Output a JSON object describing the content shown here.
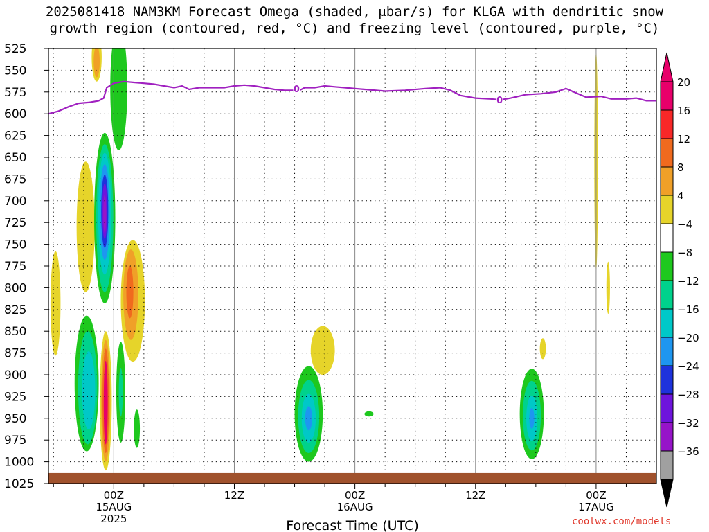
{
  "title": {
    "line1": "2025081418 NAM3KM Forecast Omega (shaded, μbar/s) for KLGA with dendritic snow",
    "line2": "growth region (contoured, red, °C) and freezing level (contoured, purple, °C)"
  },
  "credit": "coolwx.com/models",
  "chart_data": {
    "type": "heatmap",
    "xlabel": "Forecast Time (UTC)",
    "ylabel": "",
    "y_axis": {
      "scale": "pressure (hPa), inverted",
      "range": [
        1025,
        525
      ]
    },
    "y_ticks": [
      525,
      550,
      575,
      600,
      625,
      650,
      675,
      700,
      725,
      750,
      775,
      800,
      825,
      850,
      875,
      900,
      925,
      950,
      975,
      1000,
      1025
    ],
    "x_axis": {
      "range_hours_from_start": [
        -6.5,
        54
      ]
    },
    "x_ticks": [
      {
        "hour": 0,
        "label": "00Z",
        "sub1": "15AUG",
        "sub2": "2025"
      },
      {
        "hour": 12,
        "label": "12Z",
        "sub1": "",
        "sub2": ""
      },
      {
        "hour": 24,
        "label": "00Z",
        "sub1": "16AUG",
        "sub2": ""
      },
      {
        "hour": 36,
        "label": "12Z",
        "sub1": "",
        "sub2": ""
      },
      {
        "hour": 48,
        "label": "00Z",
        "sub1": "17AUG",
        "sub2": ""
      }
    ],
    "grid": true,
    "colorbar": {
      "labels": [
        "20",
        "16",
        "12",
        "8",
        "4",
        "−4",
        "−8",
        "−12",
        "−16",
        "−20",
        "−24",
        "−28",
        "−32",
        "−36"
      ],
      "colors": [
        "#e8006a",
        "#f82828",
        "#f06a1e",
        "#f0a028",
        "#e6d42a",
        "#ffffff",
        "#1ec81e",
        "#00d28c",
        "#00c8c8",
        "#1e96f0",
        "#1e32dc",
        "#6e14dc",
        "#9614c8",
        "#a0a0a0"
      ]
    },
    "freezing_level": {
      "label": "0",
      "color": "#a020c0",
      "points": [
        [
          -6.5,
          600
        ],
        [
          -5.5,
          597
        ],
        [
          -4.5,
          592
        ],
        [
          -3.5,
          588
        ],
        [
          -2.5,
          587
        ],
        [
          -1.5,
          585
        ],
        [
          -1,
          582
        ],
        [
          -0.7,
          570
        ],
        [
          0,
          565
        ],
        [
          1,
          563
        ],
        [
          2,
          564
        ],
        [
          3,
          565
        ],
        [
          4,
          566
        ],
        [
          5,
          568
        ],
        [
          6,
          570
        ],
        [
          6.8,
          568
        ],
        [
          7.5,
          572
        ],
        [
          8.5,
          570
        ],
        [
          9.5,
          570
        ],
        [
          11,
          570
        ],
        [
          12,
          568
        ],
        [
          13,
          567
        ],
        [
          14,
          568
        ],
        [
          15,
          570
        ],
        [
          16,
          572
        ],
        [
          17,
          573
        ],
        [
          18.5,
          573
        ],
        [
          19,
          570
        ],
        [
          20,
          570
        ],
        [
          21,
          568
        ],
        [
          22,
          569
        ],
        [
          23,
          570
        ],
        [
          24,
          571
        ],
        [
          25,
          572
        ],
        [
          27,
          574
        ],
        [
          29,
          573
        ],
        [
          31,
          571
        ],
        [
          32.5,
          570
        ],
        [
          33.5,
          573
        ],
        [
          34.5,
          579
        ],
        [
          36,
          582
        ],
        [
          37.5,
          583
        ],
        [
          38.5,
          584
        ],
        [
          39.5,
          582
        ],
        [
          41,
          578
        ],
        [
          42.5,
          577
        ],
        [
          44,
          575
        ],
        [
          45,
          571
        ],
        [
          46,
          576
        ],
        [
          47,
          581
        ],
        [
          48.5,
          580
        ],
        [
          49.5,
          583
        ],
        [
          51,
          583
        ],
        [
          52,
          582
        ],
        [
          53,
          585
        ],
        [
          54,
          585
        ]
      ]
    },
    "surface": {
      "color": "#a0522d",
      "pressure_top": 1013
    },
    "shaded_regions": [
      {
        "color": "#e6d42a",
        "cx": -1.7,
        "cy": 535,
        "rx": 0.5,
        "ry": 28
      },
      {
        "color": "#f0a028",
        "cx": -1.7,
        "cy": 540,
        "rx": 0.3,
        "ry": 18
      },
      {
        "color": "#1ec81e",
        "cx": 0.5,
        "cy": 570,
        "rx": 0.85,
        "ry": 72
      },
      {
        "color": "#e6d42a",
        "cx": -2.8,
        "cy": 730,
        "rx": 0.9,
        "ry": 75
      },
      {
        "color": "#e6d42a",
        "cx": -5.8,
        "cy": 818,
        "rx": 0.5,
        "ry": 60
      },
      {
        "color": "#1ec81e",
        "cx": -0.9,
        "cy": 720,
        "rx": 1.05,
        "ry": 98
      },
      {
        "color": "#00d28c",
        "cx": -0.9,
        "cy": 720,
        "rx": 0.85,
        "ry": 85
      },
      {
        "color": "#00c8c8",
        "cx": -0.9,
        "cy": 715,
        "rx": 0.65,
        "ry": 70
      },
      {
        "color": "#1e96f0",
        "cx": -0.9,
        "cy": 713,
        "rx": 0.5,
        "ry": 55
      },
      {
        "color": "#1e32dc",
        "cx": -0.9,
        "cy": 712,
        "rx": 0.35,
        "ry": 42
      },
      {
        "color": "#6e14dc",
        "cx": -0.9,
        "cy": 712,
        "rx": 0.25,
        "ry": 32
      },
      {
        "color": "#9614c8",
        "cx": -0.9,
        "cy": 715,
        "rx": 0.15,
        "ry": 22
      },
      {
        "color": "#e6d42a",
        "cx": 1.9,
        "cy": 815,
        "rx": 1.2,
        "ry": 70
      },
      {
        "color": "#f0a028",
        "cx": 1.7,
        "cy": 808,
        "rx": 0.75,
        "ry": 52
      },
      {
        "color": "#f06a1e",
        "cx": 1.6,
        "cy": 805,
        "rx": 0.35,
        "ry": 30
      },
      {
        "color": "#1ec81e",
        "cx": -2.7,
        "cy": 910,
        "rx": 1.2,
        "ry": 78
      },
      {
        "color": "#00d28c",
        "cx": -2.6,
        "cy": 915,
        "rx": 0.95,
        "ry": 65
      },
      {
        "color": "#00c8c8",
        "cx": -2.5,
        "cy": 918,
        "rx": 0.65,
        "ry": 45
      },
      {
        "color": "#e6d42a",
        "cx": -0.8,
        "cy": 930,
        "rx": 0.6,
        "ry": 80
      },
      {
        "color": "#f0a028",
        "cx": -0.8,
        "cy": 930,
        "rx": 0.45,
        "ry": 70
      },
      {
        "color": "#f06a1e",
        "cx": -0.8,
        "cy": 930,
        "rx": 0.32,
        "ry": 60
      },
      {
        "color": "#e8006a",
        "cx": -0.8,
        "cy": 932,
        "rx": 0.2,
        "ry": 48
      },
      {
        "color": "#1ec81e",
        "cx": 0.7,
        "cy": 920,
        "rx": 0.45,
        "ry": 58
      },
      {
        "color": "#00d28c",
        "cx": 0.7,
        "cy": 920,
        "rx": 0.2,
        "ry": 28
      },
      {
        "color": "#1ec81e",
        "cx": 2.3,
        "cy": 962,
        "rx": 0.3,
        "ry": 22
      },
      {
        "color": "#e6d42a",
        "cx": 20.8,
        "cy": 872,
        "rx": 1.2,
        "ry": 28
      },
      {
        "color": "#1ec81e",
        "cx": 19.4,
        "cy": 945,
        "rx": 1.4,
        "ry": 55
      },
      {
        "color": "#00d28c",
        "cx": 19.4,
        "cy": 948,
        "rx": 1.05,
        "ry": 42
      },
      {
        "color": "#00c8c8",
        "cx": 19.4,
        "cy": 950,
        "rx": 0.7,
        "ry": 28
      },
      {
        "color": "#1e96f0",
        "cx": 19.4,
        "cy": 950,
        "rx": 0.35,
        "ry": 14
      },
      {
        "color": "#1ec81e",
        "cx": 25.4,
        "cy": 945,
        "rx": 0.45,
        "ry": 3
      },
      {
        "color": "#e6d42a",
        "cx": 48,
        "cy": 655,
        "rx": 0.18,
        "ry": 125
      },
      {
        "color": "#e6d42a",
        "cx": 49.2,
        "cy": 800,
        "rx": 0.18,
        "ry": 30
      },
      {
        "color": "#e6d42a",
        "cx": 42.7,
        "cy": 870,
        "rx": 0.3,
        "ry": 12
      },
      {
        "color": "#1ec81e",
        "cx": 41.6,
        "cy": 945,
        "rx": 1.2,
        "ry": 52
      },
      {
        "color": "#00d28c",
        "cx": 41.6,
        "cy": 947,
        "rx": 0.9,
        "ry": 40
      },
      {
        "color": "#00c8c8",
        "cx": 41.6,
        "cy": 950,
        "rx": 0.55,
        "ry": 26
      },
      {
        "color": "#1e96f0",
        "cx": 41.6,
        "cy": 950,
        "rx": 0.25,
        "ry": 12
      }
    ]
  }
}
